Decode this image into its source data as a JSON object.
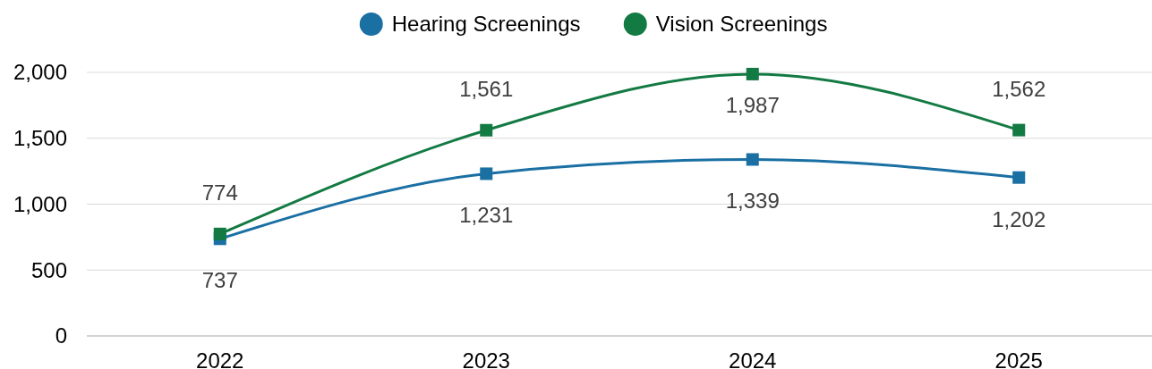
{
  "chart_data": {
    "type": "line",
    "categories": [
      "2022",
      "2023",
      "2024",
      "2025"
    ],
    "series": [
      {
        "name": "Hearing Screenings",
        "color": "#1a6fa3",
        "values": [
          737,
          1231,
          1339,
          1202
        ],
        "value_labels": [
          "737",
          "1,231",
          "1,339",
          "1,202"
        ]
      },
      {
        "name": "Vision Screenings",
        "color": "#137a43",
        "values": [
          774,
          1561,
          1987,
          1562
        ],
        "value_labels": [
          "774",
          "1,561",
          "1,987",
          "1,562"
        ]
      }
    ],
    "ylim": [
      0,
      2000
    ],
    "yticks": [
      {
        "value": 0,
        "label": "0"
      },
      {
        "value": 500,
        "label": "500"
      },
      {
        "value": 1000,
        "label": "1,000"
      },
      {
        "value": 1500,
        "label": "1,500"
      },
      {
        "value": 2000,
        "label": "2,000"
      }
    ],
    "grid": "y",
    "legend": "top",
    "marker": "square",
    "line_style": "solid"
  }
}
